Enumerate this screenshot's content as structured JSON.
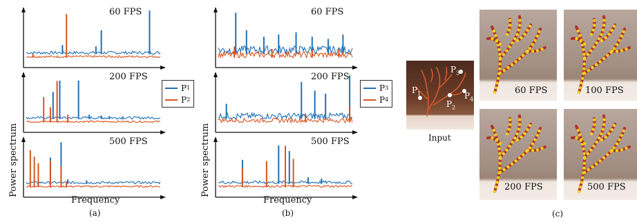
{
  "colors": {
    "blue": "#1f6fb4",
    "orange": "#d9541e"
  },
  "panel_a": {
    "ylabel": "Power spectrum",
    "xlabel": "Frequency",
    "caption": "(a)",
    "legend": [
      {
        "label": "P",
        "sub": "1",
        "color": "#1f6fb4"
      },
      {
        "label": "P",
        "sub": "2",
        "color": "#d9541e"
      }
    ],
    "plots": [
      {
        "title": "60 FPS"
      },
      {
        "title": "200 FPS"
      },
      {
        "title": "500 FPS"
      }
    ]
  },
  "panel_b": {
    "ylabel": "Power spectrum",
    "xlabel": "Frequency",
    "caption": "(b)",
    "legend": [
      {
        "label": "P",
        "sub": "3",
        "color": "#1f6fb4"
      },
      {
        "label": "P",
        "sub": "4",
        "color": "#d9541e"
      }
    ],
    "plots": [
      {
        "title": "60 FPS"
      },
      {
        "title": "200 FPS"
      },
      {
        "title": "500 FPS"
      }
    ]
  },
  "panel_c": {
    "caption": "(c)",
    "input_label": "Input",
    "points": [
      {
        "label": "P",
        "sub": "1"
      },
      {
        "label": "P",
        "sub": "2"
      },
      {
        "label": "P",
        "sub": "3"
      },
      {
        "label": "P",
        "sub": "4"
      }
    ],
    "results": [
      "60 FPS",
      "100 FPS",
      "200 FPS",
      "500 FPS"
    ]
  },
  "chart_data": [
    {
      "type": "line",
      "title": "60 FPS",
      "xlabel": "Frequency",
      "ylabel": "Power spectrum",
      "series": [
        {
          "name": "P1",
          "peaks": [
            [
              0.27,
              0.21
            ],
            [
              0.52,
              0.18
            ],
            [
              0.56,
              0.55
            ],
            [
              0.92,
              1.0
            ]
          ]
        },
        {
          "name": "P2",
          "peaks": [
            [
              0.3,
              1.0
            ],
            [
              0.05,
              0.08
            ]
          ]
        }
      ]
    },
    {
      "type": "line",
      "title": "200 FPS",
      "xlabel": "Frequency",
      "ylabel": "Power spectrum",
      "series": [
        {
          "name": "P1",
          "peaks": [
            [
              0.2,
              0.62
            ],
            [
              0.25,
              0.88
            ],
            [
              0.39,
              0.88
            ],
            [
              0.47,
              0.1
            ],
            [
              0.56,
              0.08
            ],
            [
              0.62,
              0.07
            ],
            [
              0.72,
              0.06
            ]
          ]
        },
        {
          "name": "P2",
          "peaks": [
            [
              0.13,
              0.58
            ],
            [
              0.18,
              0.35
            ],
            [
              0.23,
              0.95
            ],
            [
              0.31,
              0.18
            ]
          ]
        }
      ]
    },
    {
      "type": "line",
      "title": "500 FPS",
      "xlabel": "Frequency",
      "ylabel": "Power spectrum",
      "series": [
        {
          "name": "P1",
          "peaks": [
            [
              0.18,
              0.6
            ],
            [
              0.26,
              0.95
            ],
            [
              0.31,
              0.1
            ],
            [
              0.45,
              0.08
            ]
          ]
        },
        {
          "name": "P2",
          "peaks": [
            [
              0.03,
              0.85
            ],
            [
              0.06,
              0.7
            ],
            [
              0.09,
              0.55
            ],
            [
              0.18,
              0.6
            ],
            [
              0.26,
              0.48
            ],
            [
              0.3,
              0.12
            ]
          ]
        }
      ]
    },
    {
      "type": "line",
      "title": "60 FPS",
      "xlabel": "Frequency",
      "ylabel": "Power spectrum",
      "series": [
        {
          "name": "P3",
          "peaks": [
            [
              0.13,
              0.95
            ],
            [
              0.21,
              0.55
            ],
            [
              0.34,
              0.4
            ],
            [
              0.45,
              0.45
            ],
            [
              0.58,
              0.5
            ],
            [
              0.7,
              0.4
            ],
            [
              0.82,
              0.35
            ],
            [
              0.93,
              0.45
            ]
          ]
        },
        {
          "name": "P4",
          "peaks": [
            [
              0.12,
              0.25
            ],
            [
              0.4,
              0.2
            ],
            [
              0.7,
              0.18
            ],
            [
              0.9,
              0.2
            ]
          ]
        }
      ]
    },
    {
      "type": "line",
      "title": "200 FPS",
      "xlabel": "Frequency",
      "ylabel": "Power spectrum",
      "series": [
        {
          "name": "P3",
          "peaks": [
            [
              0.06,
              0.35
            ],
            [
              0.62,
              0.85
            ],
            [
              0.72,
              0.65
            ],
            [
              0.8,
              0.58
            ],
            [
              0.98,
              1.0
            ]
          ]
        },
        {
          "name": "P4",
          "peaks": [
            [
              0.98,
              0.35
            ],
            [
              0.65,
              0.2
            ]
          ]
        }
      ]
    },
    {
      "type": "line",
      "title": "500 FPS",
      "xlabel": "Frequency",
      "ylabel": "Power spectrum",
      "series": [
        {
          "name": "P3",
          "peaks": [
            [
              0.18,
              0.55
            ],
            [
              0.45,
              0.88
            ],
            [
              0.53,
              0.75
            ],
            [
              0.67,
              0.15
            ],
            [
              0.77,
              0.12
            ]
          ]
        },
        {
          "name": "P4",
          "peaks": [
            [
              0.18,
              0.45
            ],
            [
              0.36,
              0.6
            ],
            [
              0.5,
              0.95
            ],
            [
              0.56,
              0.65
            ]
          ]
        }
      ]
    }
  ]
}
